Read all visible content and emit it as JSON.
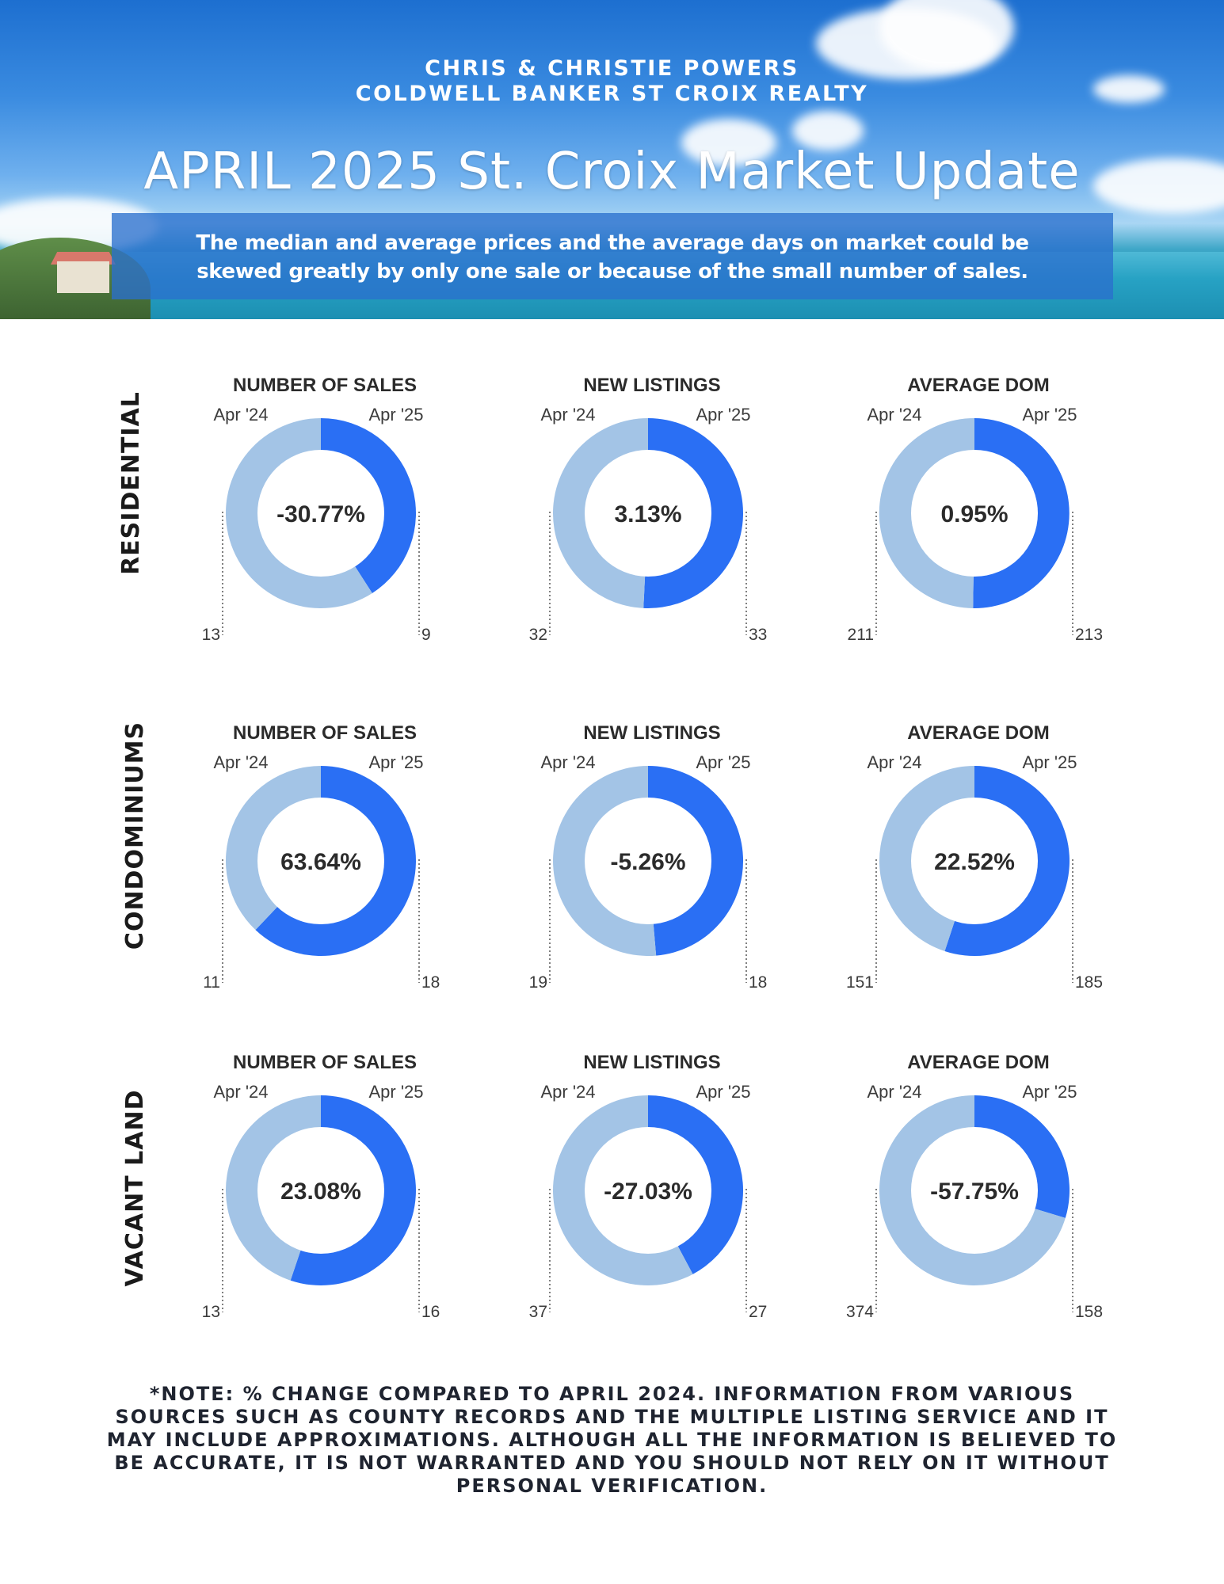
{
  "header": {
    "agent_line1": "CHRIS & CHRISTIE POWERS",
    "agent_line2": "COLDWELL BANKER ST CROIX REALTY",
    "title": "APRIL 2025 St. Croix Market Update",
    "subtitle_line1": "The median and average prices and  the average days on market could be",
    "subtitle_line2": "skewed greatly by only one sale or because of the small number of sales."
  },
  "colors": {
    "prior_period": "#a3c4e6",
    "current_period": "#2a6ff4",
    "leader_line": "#555555"
  },
  "chart_data": [
    {
      "type": "pie",
      "row": "RESIDENTIAL",
      "title": "NUMBER OF SALES",
      "labels": [
        "Apr '24",
        "Apr '25"
      ],
      "values": [
        13,
        9
      ],
      "center_label": "-30.77%"
    },
    {
      "type": "pie",
      "row": "RESIDENTIAL",
      "title": "NEW LISTINGS",
      "labels": [
        "Apr '24",
        "Apr '25"
      ],
      "values": [
        32,
        33
      ],
      "center_label": "3.13%"
    },
    {
      "type": "pie",
      "row": "RESIDENTIAL",
      "title": "AVERAGE DOM",
      "labels": [
        "Apr '24",
        "Apr '25"
      ],
      "values": [
        211,
        213
      ],
      "center_label": "0.95%"
    },
    {
      "type": "pie",
      "row": "CONDOMINIUMS",
      "title": "NUMBER OF SALES",
      "labels": [
        "Apr '24",
        "Apr '25"
      ],
      "values": [
        11,
        18
      ],
      "center_label": "63.64%"
    },
    {
      "type": "pie",
      "row": "CONDOMINIUMS",
      "title": "NEW LISTINGS",
      "labels": [
        "Apr '24",
        "Apr '25"
      ],
      "values": [
        19,
        18
      ],
      "center_label": "-5.26%"
    },
    {
      "type": "pie",
      "row": "CONDOMINIUMS",
      "title": "AVERAGE DOM",
      "labels": [
        "Apr '24",
        "Apr '25"
      ],
      "values": [
        151,
        185
      ],
      "center_label": "22.52%"
    },
    {
      "type": "pie",
      "row": "VACANT LAND",
      "title": "NUMBER OF SALES",
      "labels": [
        "Apr '24",
        "Apr '25"
      ],
      "values": [
        13,
        16
      ],
      "center_label": "23.08%"
    },
    {
      "type": "pie",
      "row": "VACANT LAND",
      "title": "NEW LISTINGS",
      "labels": [
        "Apr '24",
        "Apr '25"
      ],
      "values": [
        37,
        27
      ],
      "center_label": "-27.03%"
    },
    {
      "type": "pie",
      "row": "VACANT LAND",
      "title": "AVERAGE DOM",
      "labels": [
        "Apr '24",
        "Apr '25"
      ],
      "values": [
        374,
        158
      ],
      "center_label": "-57.75%"
    }
  ],
  "rows": [
    "RESIDENTIAL",
    "CONDOMINIUMS",
    "VACANT LAND"
  ],
  "footnote": [
    "*NOTE: % CHANGE COMPARED TO APRIL 2024. INFORMATION FROM VARIOUS",
    "SOURCES SUCH AS COUNTY RECORDS AND THE MULTIPLE LISTING SERVICE AND IT",
    "MAY INCLUDE APPROXIMATIONS. ALTHOUGH ALL THE INFORMATION IS BELIEVED TO",
    "BE ACCURATE, IT IS NOT WARRANTED AND YOU SHOULD NOT RELY ON IT WITHOUT",
    "PERSONAL VERIFICATION."
  ]
}
